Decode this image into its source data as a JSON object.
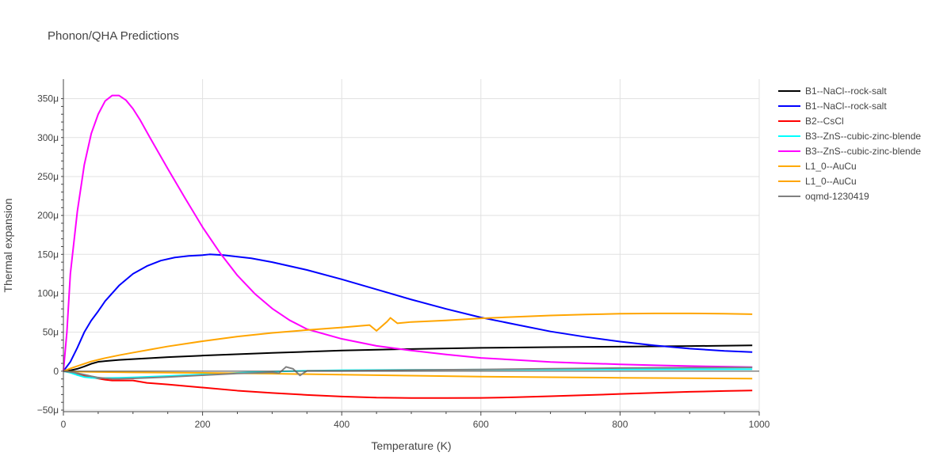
{
  "chart_data": {
    "type": "line",
    "title": "Phonon/QHA Predictions",
    "xlabel": "Temperature (K)",
    "ylabel": "Thermal expansion",
    "xlim": [
      0,
      1000
    ],
    "ylim": [
      -5.2e-05,
      0.000375
    ],
    "grid": true,
    "legend_position": "right",
    "x_ticks": [
      0,
      200,
      400,
      600,
      800,
      1000
    ],
    "x_tick_labels": [
      "0",
      "200",
      "400",
      "600",
      "800",
      "1000"
    ],
    "y_ticks": [
      -5e-05,
      0,
      5e-05,
      0.0001,
      0.00015,
      0.0002,
      0.00025,
      0.0003,
      0.00035
    ],
    "y_tick_labels": [
      "−50μ",
      "0",
      "50μ",
      "100μ",
      "150μ",
      "200μ",
      "250μ",
      "300μ",
      "350μ"
    ],
    "series": [
      {
        "name": "B1--NaCl--rock-salt",
        "color": "#000000",
        "points": [
          [
            0,
            0
          ],
          [
            10,
            1e-06
          ],
          [
            20,
            3e-06
          ],
          [
            30,
            6e-06
          ],
          [
            40,
            9.5e-06
          ],
          [
            50,
            1.2e-05
          ],
          [
            60,
            1.3e-05
          ],
          [
            80,
            1.45e-05
          ],
          [
            100,
            1.55e-05
          ],
          [
            150,
            1.8e-05
          ],
          [
            200,
            2e-05
          ],
          [
            300,
            2.35e-05
          ],
          [
            400,
            2.65e-05
          ],
          [
            500,
            2.85e-05
          ],
          [
            600,
            3e-05
          ],
          [
            700,
            3.08e-05
          ],
          [
            800,
            3.15e-05
          ],
          [
            900,
            3.22e-05
          ],
          [
            990,
            3.32e-05
          ]
        ]
      },
      {
        "name": "B1--NaCl--rock-salt",
        "color": "#0000ff",
        "points": [
          [
            0,
            0
          ],
          [
            10,
            1.2e-05
          ],
          [
            20,
            3e-05
          ],
          [
            30,
            5e-05
          ],
          [
            40,
            6.5e-05
          ],
          [
            50,
            7.7e-05
          ],
          [
            60,
            9e-05
          ],
          [
            80,
            0.00011
          ],
          [
            100,
            0.000125
          ],
          [
            120,
            0.000135
          ],
          [
            140,
            0.000142
          ],
          [
            160,
            0.000146
          ],
          [
            180,
            0.000148
          ],
          [
            200,
            0.000149
          ],
          [
            210,
            0.00015
          ],
          [
            230,
            0.000149
          ],
          [
            270,
            0.000145
          ],
          [
            300,
            0.00014
          ],
          [
            350,
            0.00013
          ],
          [
            400,
            0.000118
          ],
          [
            450,
            0.000105
          ],
          [
            500,
            9.2e-05
          ],
          [
            550,
            8e-05
          ],
          [
            600,
            6.9e-05
          ],
          [
            650,
            6e-05
          ],
          [
            700,
            5.1e-05
          ],
          [
            750,
            4.4e-05
          ],
          [
            800,
            3.8e-05
          ],
          [
            850,
            3.3e-05
          ],
          [
            900,
            2.9e-05
          ],
          [
            950,
            2.6e-05
          ],
          [
            990,
            2.45e-05
          ]
        ]
      },
      {
        "name": "B2--CsCl",
        "color": "#ff0000",
        "points": [
          [
            0,
            0
          ],
          [
            10,
            -1.5e-06
          ],
          [
            20,
            -4e-06
          ],
          [
            30,
            -6e-06
          ],
          [
            40,
            -8e-06
          ],
          [
            50,
            -9.5e-06
          ],
          [
            60,
            -1.1e-05
          ],
          [
            70,
            -1.2e-05
          ],
          [
            80,
            -1.2e-05
          ],
          [
            100,
            -1.2e-05
          ],
          [
            120,
            -1.5e-05
          ],
          [
            150,
            -1.7e-05
          ],
          [
            200,
            -2.1e-05
          ],
          [
            250,
            -2.5e-05
          ],
          [
            300,
            -2.8e-05
          ],
          [
            350,
            -3.05e-05
          ],
          [
            400,
            -3.25e-05
          ],
          [
            450,
            -3.4e-05
          ],
          [
            500,
            -3.45e-05
          ],
          [
            550,
            -3.45e-05
          ],
          [
            600,
            -3.43e-05
          ],
          [
            650,
            -3.35e-05
          ],
          [
            700,
            -3.22e-05
          ],
          [
            750,
            -3.08e-05
          ],
          [
            800,
            -2.93e-05
          ],
          [
            850,
            -2.78e-05
          ],
          [
            900,
            -2.65e-05
          ],
          [
            950,
            -2.55e-05
          ],
          [
            990,
            -2.48e-05
          ]
        ]
      },
      {
        "name": "B3--ZnS--cubic-zinc-blende",
        "color": "#00ffff",
        "points": [
          [
            0,
            0
          ],
          [
            10,
            -2e-06
          ],
          [
            20,
            -5e-06
          ],
          [
            30,
            -7.5e-06
          ],
          [
            40,
            -8.5e-06
          ],
          [
            50,
            -8.8e-06
          ],
          [
            60,
            -8.8e-06
          ],
          [
            80,
            -8.5e-06
          ],
          [
            100,
            -8e-06
          ],
          [
            150,
            -6.2e-06
          ],
          [
            200,
            -4.2e-06
          ],
          [
            250,
            -2.2e-06
          ],
          [
            300,
            -5e-07
          ],
          [
            350,
            5e-07
          ],
          [
            400,
            1.2e-06
          ],
          [
            500,
            1.8e-06
          ],
          [
            600,
            2e-06
          ],
          [
            700,
            2.2e-06
          ],
          [
            800,
            2.3e-06
          ],
          [
            900,
            2.4e-06
          ],
          [
            990,
            2.5e-06
          ]
        ]
      },
      {
        "name": "B3--ZnS--cubic-zinc-blende",
        "color": "#ff00ff",
        "points": [
          [
            0,
            0
          ],
          [
            5,
            5e-05
          ],
          [
            10,
            0.000125
          ],
          [
            20,
            0.000205
          ],
          [
            30,
            0.000265
          ],
          [
            40,
            0.000305
          ],
          [
            50,
            0.00033
          ],
          [
            60,
            0.000347
          ],
          [
            70,
            0.000354
          ],
          [
            80,
            0.000354
          ],
          [
            90,
            0.000348
          ],
          [
            100,
            0.000337
          ],
          [
            110,
            0.000323
          ],
          [
            125,
            0.000299
          ],
          [
            150,
            0.00026
          ],
          [
            175,
            0.000222
          ],
          [
            200,
            0.000185
          ],
          [
            225,
            0.000152
          ],
          [
            250,
            0.000123
          ],
          [
            275,
            9.95e-05
          ],
          [
            300,
            8.05e-05
          ],
          [
            325,
            6.55e-05
          ],
          [
            350,
            5.4e-05
          ],
          [
            400,
            4.15e-05
          ],
          [
            450,
            3.25e-05
          ],
          [
            500,
            2.65e-05
          ],
          [
            550,
            2.15e-05
          ],
          [
            600,
            1.7e-05
          ],
          [
            650,
            1.45e-05
          ],
          [
            700,
            1.18e-05
          ],
          [
            750,
            1.02e-05
          ],
          [
            800,
            8.8e-06
          ],
          [
            850,
            7.6e-06
          ],
          [
            900,
            6.6e-06
          ],
          [
            950,
            5.8e-06
          ],
          [
            990,
            5.2e-06
          ]
        ]
      },
      {
        "name": "L1_0--AuCu",
        "color": "#ffaa00",
        "points": [
          [
            0,
            0
          ],
          [
            20,
            -5e-07
          ],
          [
            50,
            -1e-06
          ],
          [
            100,
            -1.5e-06
          ],
          [
            200,
            -2.2e-06
          ],
          [
            300,
            -3.2e-06
          ],
          [
            400,
            -4.5e-06
          ],
          [
            500,
            -5.8e-06
          ],
          [
            600,
            -7e-06
          ],
          [
            700,
            -7.8e-06
          ],
          [
            800,
            -8.5e-06
          ],
          [
            900,
            -9e-06
          ],
          [
            990,
            -9.5e-06
          ]
        ]
      },
      {
        "name": "L1_0--AuCu",
        "color": "#ffa500",
        "points": [
          [
            0,
            0
          ],
          [
            10,
            3.5e-06
          ],
          [
            20,
            6.5e-06
          ],
          [
            30,
            9.5e-06
          ],
          [
            40,
            1.25e-05
          ],
          [
            60,
            1.68e-05
          ],
          [
            80,
            2.05e-05
          ],
          [
            100,
            2.38e-05
          ],
          [
            125,
            2.78e-05
          ],
          [
            150,
            3.18e-05
          ],
          [
            200,
            3.85e-05
          ],
          [
            250,
            4.45e-05
          ],
          [
            300,
            4.92e-05
          ],
          [
            350,
            5.28e-05
          ],
          [
            400,
            5.62e-05
          ],
          [
            440,
            5.92e-05
          ],
          [
            450,
            5.18e-05
          ],
          [
            465,
            6.35e-05
          ],
          [
            470,
            6.85e-05
          ],
          [
            480,
            6.15e-05
          ],
          [
            500,
            6.32e-05
          ],
          [
            550,
            6.52e-05
          ],
          [
            600,
            6.78e-05
          ],
          [
            650,
            6.98e-05
          ],
          [
            700,
            7.15e-05
          ],
          [
            750,
            7.28e-05
          ],
          [
            800,
            7.38e-05
          ],
          [
            850,
            7.42e-05
          ],
          [
            900,
            7.42e-05
          ],
          [
            950,
            7.38e-05
          ],
          [
            990,
            7.32e-05
          ]
        ]
      },
      {
        "name": "oqmd-1230419",
        "color": "#808080",
        "points": [
          [
            0,
            0
          ],
          [
            10,
            -1e-06
          ],
          [
            20,
            -2.5e-06
          ],
          [
            30,
            -4.5e-06
          ],
          [
            40,
            -6.5e-06
          ],
          [
            50,
            -8.2e-06
          ],
          [
            60,
            -9.2e-06
          ],
          [
            70,
            -9.8e-06
          ],
          [
            80,
            -9.8e-06
          ],
          [
            100,
            -9.3e-06
          ],
          [
            150,
            -7.5e-06
          ],
          [
            200,
            -5.2e-06
          ],
          [
            250,
            -3e-06
          ],
          [
            280,
            -2.2e-06
          ],
          [
            300,
            -1.5e-06
          ],
          [
            310,
            -2.5e-06
          ],
          [
            320,
            5.5e-06
          ],
          [
            330,
            3e-06
          ],
          [
            340,
            -5.5e-06
          ],
          [
            350,
            5e-07
          ],
          [
            400,
            5e-07
          ],
          [
            500,
            1.5e-06
          ],
          [
            600,
            2.2e-06
          ],
          [
            700,
            3.2e-06
          ],
          [
            800,
            4e-06
          ],
          [
            900,
            4.5e-06
          ],
          [
            990,
            4.8e-06
          ]
        ]
      }
    ]
  }
}
